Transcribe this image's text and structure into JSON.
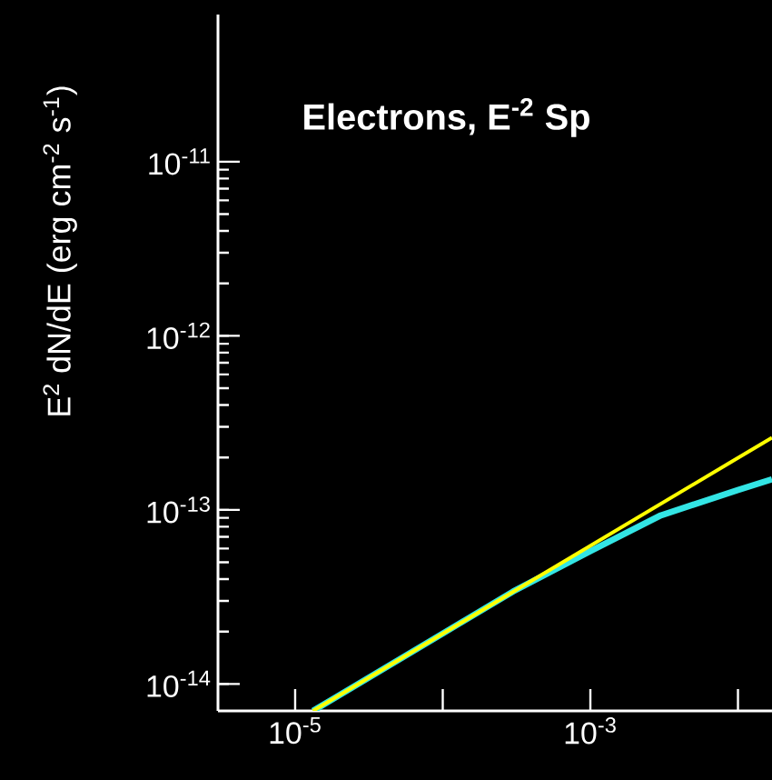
{
  "chart_data": {
    "type": "line",
    "title": "Electrons, E$^{-2}$ Sp",
    "ylabel": "E$^{2}$ dN/dE (erg cm$^{-2}$ s$^{-1}$)",
    "log": "xy",
    "marker": "none",
    "line_style": "solid",
    "xlim": [
      3e-06,
      0.017
    ],
    "ylim": [
      7e-15,
      7e-11
    ],
    "xticks": [
      {
        "value": 1e-05,
        "label": "10$^{-5}$"
      },
      {
        "value": 0.0001,
        "label": null
      },
      {
        "value": 0.001,
        "label": "10$^{-3}$"
      },
      {
        "value": 0.01,
        "label": null
      }
    ],
    "yticks": [
      {
        "value": 1e-14,
        "label": "10$^{-14}$"
      },
      {
        "value": 1e-13,
        "label": "10$^{-13}$"
      },
      {
        "value": 1e-12,
        "label": "10$^{-12}$"
      },
      {
        "value": 1e-11,
        "label": "10$^{-11}$"
      }
    ],
    "series": [
      {
        "color": "#33e5e5",
        "x": [
          1.32e-05,
          0.0001,
          0.0003,
          0.001,
          0.003,
          0.01,
          0.017
        ],
        "values": [
          7e-15,
          1.95e-14,
          3.4e-14,
          5.8e-14,
          9.3e-14,
          1.3e-13,
          1.5e-13
        ]
      },
      {
        "color": "#ffff00",
        "x": [
          1.32e-05,
          0.017
        ],
        "values": [
          7e-15,
          2.6e-13
        ]
      }
    ]
  }
}
